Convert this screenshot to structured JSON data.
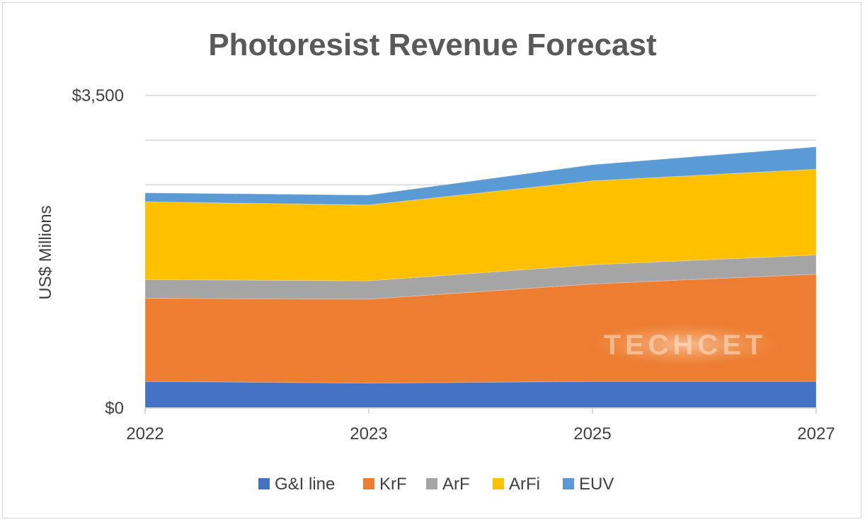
{
  "chart_data": {
    "type": "area",
    "stacked": true,
    "title": "Photoresist Revenue Forecast",
    "xlabel": "",
    "ylabel": "US$ Millions",
    "categories": [
      "2022",
      "2023",
      "2025",
      "2027"
    ],
    "ylim": [
      0,
      3500
    ],
    "ytick_labels": [
      "$0",
      "$3,500"
    ],
    "gridlines": [
      0,
      500,
      1000,
      1500,
      2000,
      2500,
      3000,
      3500
    ],
    "series": [
      {
        "name": "G&I line",
        "color": "#4472C4",
        "values": [
          300,
          280,
          300,
          300
        ]
      },
      {
        "name": "KrF",
        "color": "#ED7D31",
        "values": [
          930,
          940,
          1090,
          1200
        ]
      },
      {
        "name": "ArF",
        "color": "#A5A5A5",
        "values": [
          210,
          205,
          215,
          215
        ]
      },
      {
        "name": "ArFi",
        "color": "#FFC000",
        "values": [
          870,
          850,
          940,
          960
        ]
      },
      {
        "name": "EUV",
        "color": "#5B9BD5",
        "values": [
          100,
          110,
          180,
          250
        ]
      }
    ],
    "legend_position": "bottom",
    "watermark": "TECHCET"
  }
}
